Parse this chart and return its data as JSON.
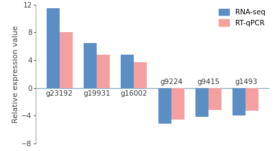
{
  "categories": [
    "g23192",
    "g19931",
    "g16002",
    "g9224",
    "g9415",
    "g1493"
  ],
  "rna_seq": [
    11.5,
    6.5,
    4.8,
    -5.2,
    -4.2,
    -4.0
  ],
  "rt_qpcr": [
    8.0,
    4.8,
    3.7,
    -4.6,
    -3.2,
    -3.3
  ],
  "rna_seq_color": "#5b8ec4",
  "rt_qpcr_color": "#f4a0a0",
  "ylabel": "Relative expression value",
  "ylim": [
    -8,
    12
  ],
  "yticks": [
    -8,
    -4,
    0,
    4,
    8,
    12
  ],
  "legend_labels": [
    "RNA-seq",
    "RT-qPCR"
  ],
  "bar_width": 0.35,
  "background_color": "#ffffff",
  "axis_line_color": "#8ab0c8",
  "label_below_zero": [
    true,
    true,
    true,
    false,
    false,
    false
  ],
  "tick_fontsize": 7.5,
  "ylabel_fontsize": 8
}
